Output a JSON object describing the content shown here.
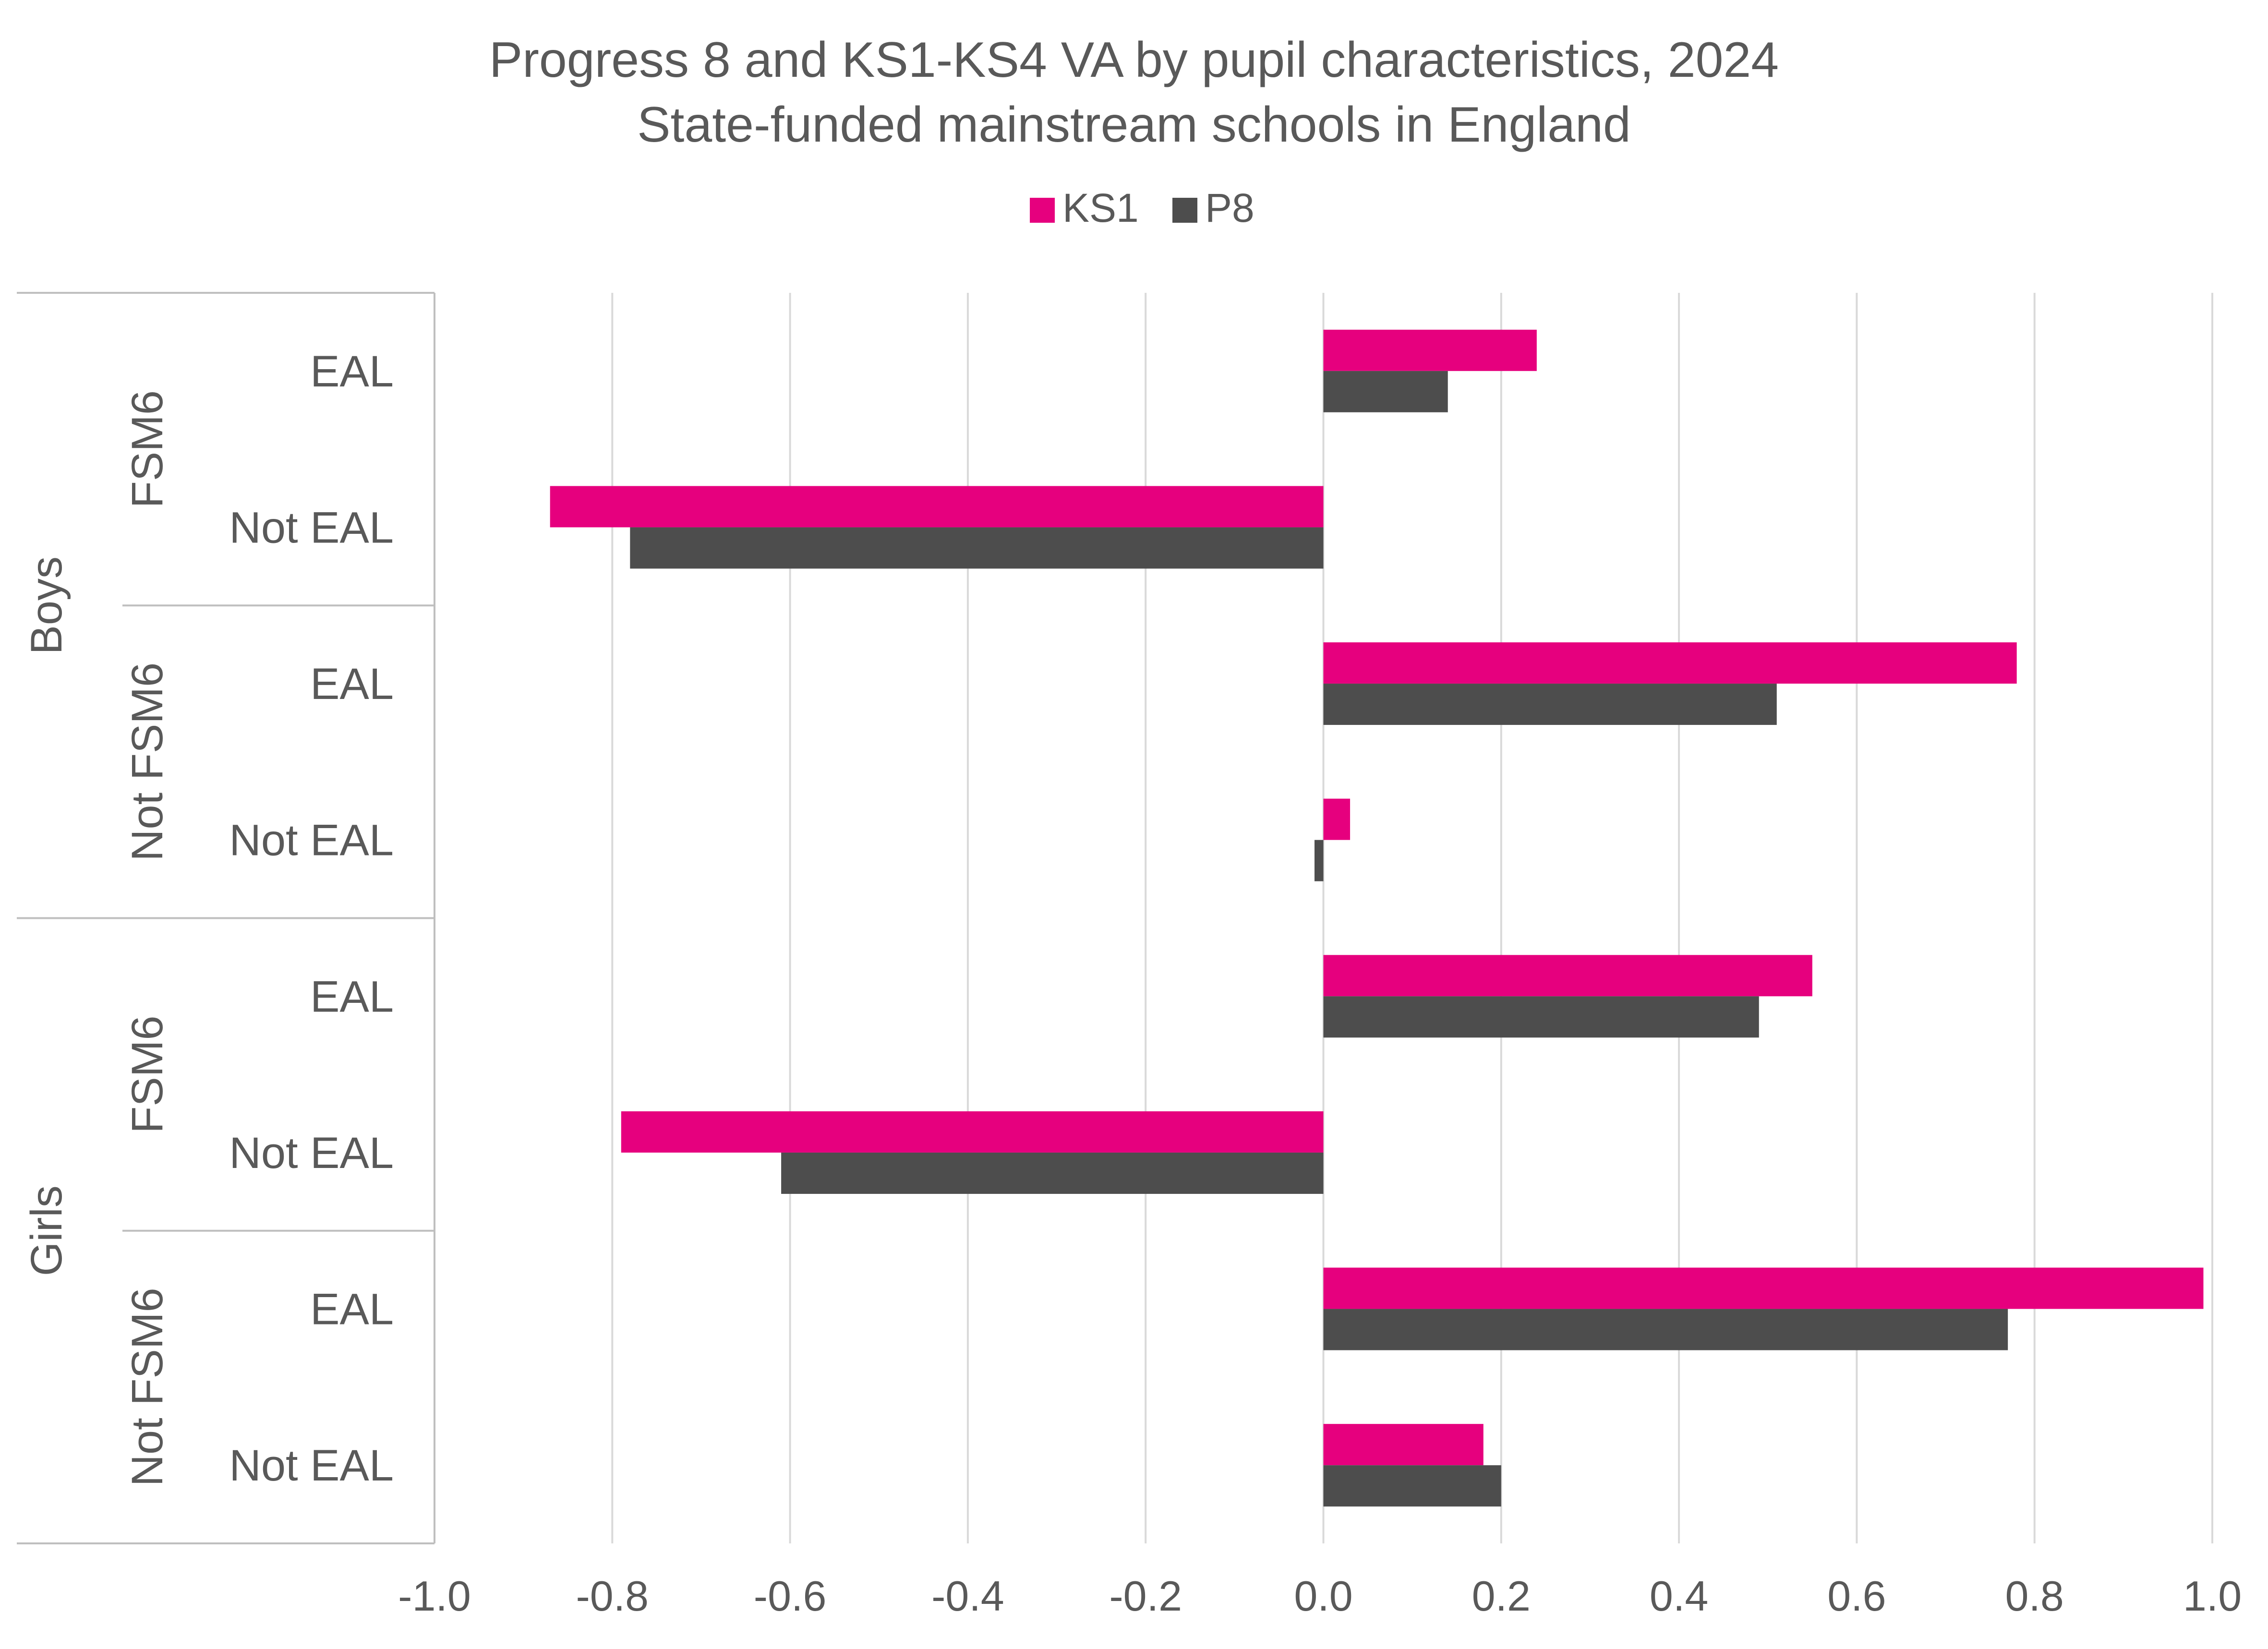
{
  "chart_data": {
    "type": "bar",
    "orientation": "horizontal",
    "title": "Progress 8 and KS1-KS4 VA by pupil characteristics, 2024",
    "subtitle": "State-funded mainstream schools in England",
    "legend": {
      "position": "top"
    },
    "xlim": [
      -1.0,
      1.0
    ],
    "x_ticks": [
      "-1.0",
      "-0.8",
      "-0.6",
      "-0.4",
      "-0.2",
      "0.0",
      "0.2",
      "0.4",
      "0.6",
      "0.8",
      "1.0"
    ],
    "x_tick_values": [
      -1.0,
      -0.8,
      -0.6,
      -0.4,
      -0.2,
      0.0,
      0.2,
      0.4,
      0.6,
      0.8,
      1.0
    ],
    "grid": true,
    "groups": [
      {
        "label": "Boys",
        "subgroups": [
          {
            "label": "FSM6",
            "categories": [
              "EAL",
              "Not EAL"
            ]
          },
          {
            "label": "Not FSM6",
            "categories": [
              "EAL",
              "Not EAL"
            ]
          }
        ]
      },
      {
        "label": "Girls",
        "subgroups": [
          {
            "label": "FSM6",
            "categories": [
              "EAL",
              "Not EAL"
            ]
          },
          {
            "label": "Not FSM6",
            "categories": [
              "EAL",
              "Not EAL"
            ]
          }
        ]
      }
    ],
    "categories": [
      "EAL",
      "Not EAL",
      "EAL",
      "Not EAL",
      "EAL",
      "Not EAL",
      "EAL",
      "Not EAL"
    ],
    "series": [
      {
        "name": "KS1",
        "color": "#e6007e",
        "values": [
          0.24,
          -0.87,
          0.78,
          0.03,
          0.55,
          -0.79,
          0.99,
          0.18
        ]
      },
      {
        "name": "P8",
        "color": "#4d4d4d",
        "values": [
          0.14,
          -0.78,
          0.51,
          -0.01,
          0.49,
          -0.61,
          0.77,
          0.2
        ]
      }
    ]
  },
  "colors": {
    "gridline": "#d9d9d9",
    "axis": "#bfbfbf",
    "text": "#595959"
  }
}
